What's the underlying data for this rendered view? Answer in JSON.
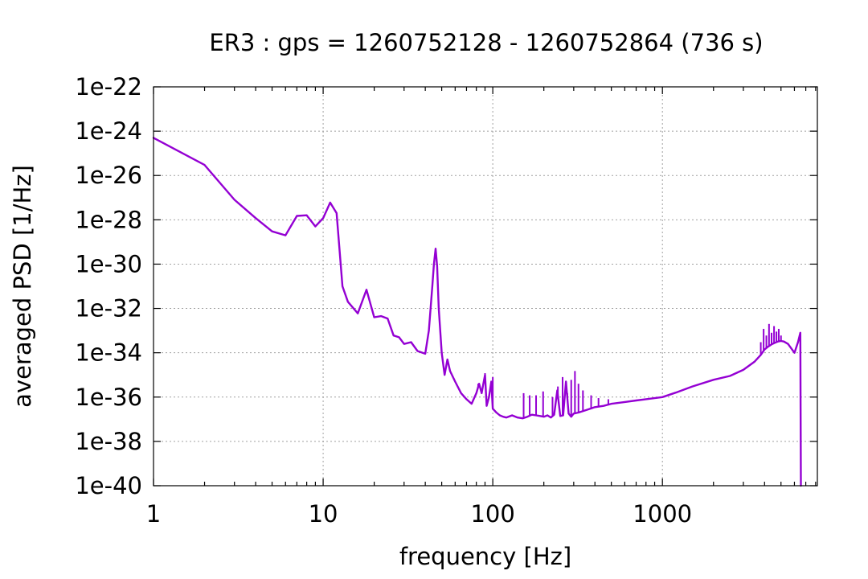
{
  "chart_data": {
    "type": "line",
    "title": "ER3 : gps = 1260752128 - 1260752864 (736 s)",
    "xlabel": "frequency [Hz]",
    "ylabel": "averaged PSD [1/Hz]",
    "x_scale": "log",
    "y_scale": "log",
    "xlim": [
      1,
      8192
    ],
    "ylim": [
      1e-40,
      1e-22
    ],
    "x_ticks": [
      {
        "value": 1,
        "label": "1"
      },
      {
        "value": 10,
        "label": "10"
      },
      {
        "value": 100,
        "label": "100"
      },
      {
        "value": 1000,
        "label": "1000"
      }
    ],
    "y_ticks": [
      {
        "value": 1e-22,
        "label": "1e-22"
      },
      {
        "value": 1e-24,
        "label": "1e-24"
      },
      {
        "value": 1e-26,
        "label": "1e-26"
      },
      {
        "value": 1e-28,
        "label": "1e-28"
      },
      {
        "value": 1e-30,
        "label": "1e-30"
      },
      {
        "value": 1e-32,
        "label": "1e-32"
      },
      {
        "value": 1e-34,
        "label": "1e-34"
      },
      {
        "value": 1e-36,
        "label": "1e-36"
      },
      {
        "value": 1e-38,
        "label": "1e-38"
      },
      {
        "value": 1e-40,
        "label": "1e-40"
      }
    ],
    "grid": true,
    "color": "#9400d3",
    "series": [
      {
        "x": [
          1,
          2,
          3,
          4,
          5,
          6,
          7,
          8,
          9,
          10,
          11,
          12,
          13,
          14,
          16,
          18,
          20,
          22,
          24,
          26,
          28,
          30,
          33,
          36,
          40,
          42,
          44,
          45,
          46,
          47,
          48,
          50,
          52,
          54,
          56,
          60,
          65,
          70,
          75,
          80,
          83,
          86,
          88,
          90,
          92,
          95,
          98,
          100,
          105,
          110,
          115,
          120,
          130,
          140,
          150,
          160,
          170,
          180,
          190,
          200,
          210,
          220,
          230,
          240,
          250,
          260,
          270,
          280,
          290,
          300,
          320,
          350,
          400,
          450,
          500,
          600,
          700,
          800,
          1000,
          1200,
          1500,
          2000,
          2500,
          3000,
          3500,
          3800,
          4000,
          4200,
          4400,
          4600,
          4800,
          5000,
          5200,
          5500,
          6000,
          6300,
          6500,
          6550
        ],
        "y": [
          5e-25,
          3e-26,
          8e-28,
          1.2e-28,
          3e-29,
          2e-29,
          1.5e-28,
          1.6e-28,
          5e-29,
          1.2e-28,
          6e-28,
          2e-28,
          1e-31,
          2e-32,
          6e-33,
          7e-32,
          4e-33,
          4.5e-33,
          3.5e-33,
          6e-34,
          5e-34,
          2.5e-34,
          3e-34,
          1.2e-34,
          9e-35,
          1e-33,
          1e-31,
          1e-30,
          5e-30,
          8e-31,
          1e-32,
          1e-34,
          1e-35,
          5e-35,
          1.5e-35,
          5e-36,
          1.5e-36,
          8e-37,
          5e-37,
          1.5e-36,
          4e-36,
          1.5e-36,
          4e-36,
          1e-35,
          4e-37,
          1e-36,
          5e-36,
          3e-37,
          2e-37,
          1.5e-37,
          1.3e-37,
          1.2e-37,
          1.5e-37,
          1.2e-37,
          1.1e-37,
          1.3e-37,
          1.6e-37,
          1.5e-37,
          1.4e-37,
          1.3e-37,
          1.5e-37,
          1.2e-37,
          1.6e-37,
          2e-36,
          1.4e-37,
          1.5e-37,
          5e-36,
          1.8e-37,
          1.3e-37,
          1.8e-37,
          2e-37,
          2.5e-37,
          3.5e-37,
          4e-37,
          5e-37,
          6e-37,
          7e-37,
          8e-37,
          1e-36,
          1.6e-36,
          3e-36,
          6e-36,
          9e-36,
          1.7e-35,
          4e-35,
          8e-35,
          1.4e-34,
          1.9e-34,
          2.4e-34,
          2.8e-34,
          3.2e-34,
          3.4e-34,
          3.2e-34,
          2.5e-34,
          1e-34,
          3e-34,
          8e-34,
          1e-40
        ]
      }
    ],
    "spikes": [
      {
        "x": 82,
        "y": 4e-36
      },
      {
        "x": 86,
        "y": 1.5e-36
      },
      {
        "x": 90,
        "y": 1.2e-35
      },
      {
        "x": 100,
        "y": 8e-36
      },
      {
        "x": 152,
        "y": 1.5e-36
      },
      {
        "x": 165,
        "y": 1.2e-36
      },
      {
        "x": 180,
        "y": 1.2e-36
      },
      {
        "x": 198,
        "y": 1.8e-36
      },
      {
        "x": 225,
        "y": 1e-36
      },
      {
        "x": 242,
        "y": 3e-36
      },
      {
        "x": 258,
        "y": 8e-36
      },
      {
        "x": 275,
        "y": 1.5e-36
      },
      {
        "x": 290,
        "y": 6e-36
      },
      {
        "x": 305,
        "y": 1.5e-35
      },
      {
        "x": 320,
        "y": 4e-36
      },
      {
        "x": 340,
        "y": 2e-36
      },
      {
        "x": 380,
        "y": 1.2e-36
      },
      {
        "x": 420,
        "y": 9e-37
      },
      {
        "x": 480,
        "y": 8e-37
      },
      {
        "x": 3800,
        "y": 3e-34
      },
      {
        "x": 3950,
        "y": 1.2e-33
      },
      {
        "x": 4100,
        "y": 6e-34
      },
      {
        "x": 4250,
        "y": 2e-33
      },
      {
        "x": 4400,
        "y": 8e-34
      },
      {
        "x": 4550,
        "y": 1.6e-33
      },
      {
        "x": 4700,
        "y": 9e-34
      },
      {
        "x": 4850,
        "y": 1.2e-33
      },
      {
        "x": 5000,
        "y": 6e-34
      }
    ]
  }
}
